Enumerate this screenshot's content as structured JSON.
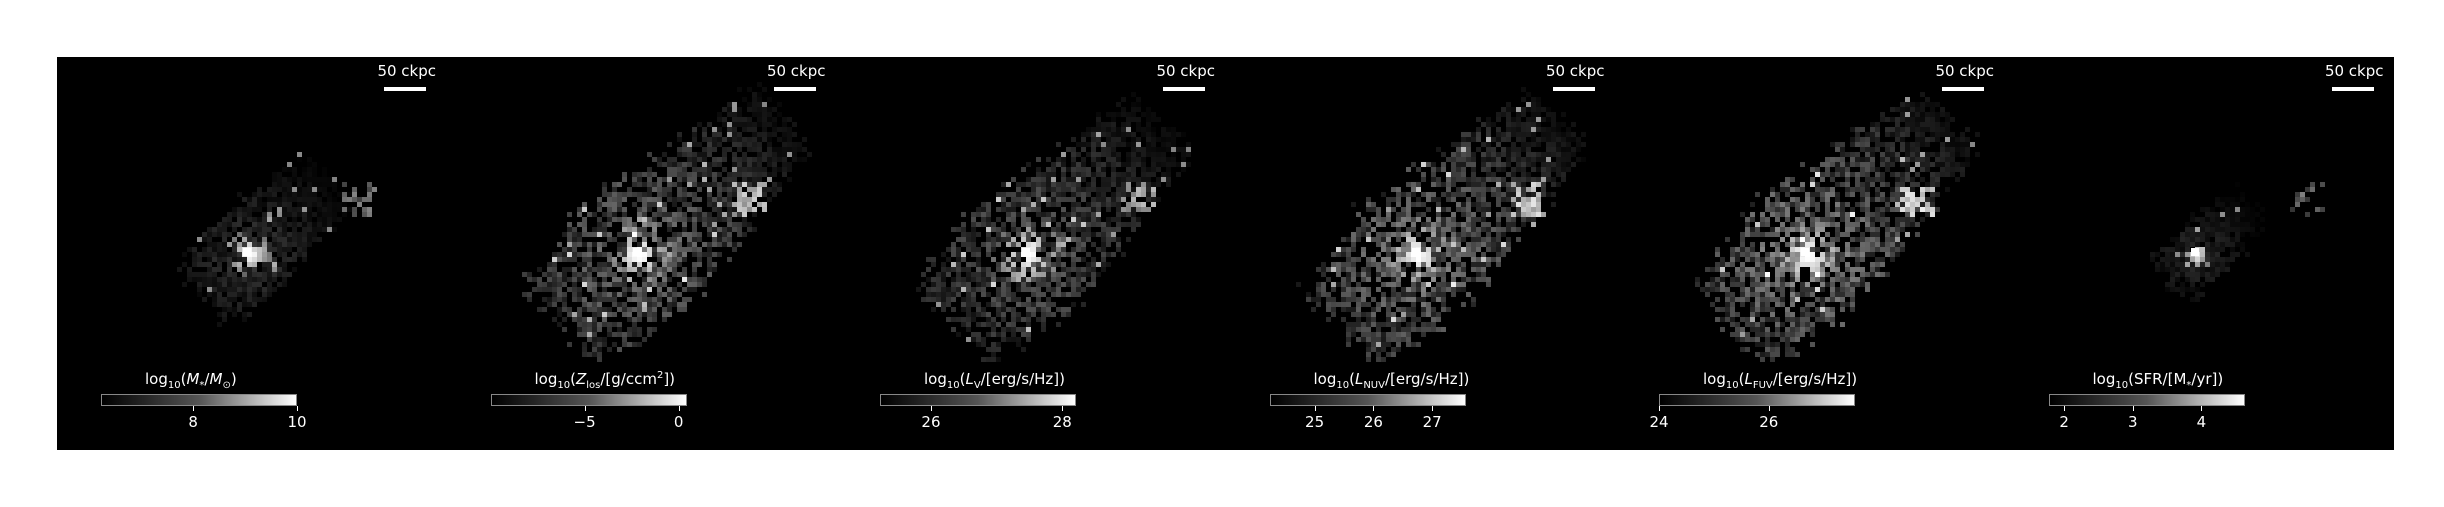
{
  "scale_label": "50 ckpc",
  "panels": [
    {
      "id": "mass",
      "colorbar_label_html": "log<sub>10</sub>(<i>M</i><sub>*</sub>/<i>M</i><sub>⊙</sub>)",
      "ticks": [
        "8",
        "10"
      ],
      "brightness": 0.25,
      "extent": 0.55,
      "core": 0.9,
      "ssize": 0.55,
      "seed": 11,
      "clump": 0.45
    },
    {
      "id": "metal",
      "colorbar_label_html": "log<sub>10</sub>(<i>Z</i><sub>los</sub>/[g/ccm<sup>2</sup>])",
      "ticks": [
        "−5",
        "0"
      ],
      "brightness": 0.55,
      "extent": 1.0,
      "core": 0.9,
      "ssize": 0.9,
      "seed": 23,
      "clump": 0.6
    },
    {
      "id": "lv",
      "colorbar_label_html": "log<sub>10</sub>(<i>L</i><sub>V</sub>/[erg/s/Hz])",
      "ticks": [
        "26",
        "28"
      ],
      "brightness": 0.45,
      "extent": 0.95,
      "core": 0.9,
      "ssize": 0.9,
      "seed": 37,
      "clump": 0.6
    },
    {
      "id": "lnuv",
      "colorbar_label_html": "log<sub>10</sub>(<i>L</i><sub>NUV</sub>/[erg/s/Hz])",
      "ticks": [
        "25",
        "26",
        "27"
      ],
      "brightness": 0.6,
      "extent": 1.0,
      "core": 0.9,
      "ssize": 1.0,
      "seed": 41,
      "clump": 0.7
    },
    {
      "id": "lfuv",
      "colorbar_label_html": "log<sub>10</sub>(<i>L</i><sub>FUV</sub>/[erg/s/Hz])",
      "ticks": [
        "24",
        "26"
      ],
      "brightness": 0.65,
      "extent": 1.0,
      "core": 0.9,
      "ssize": 1.0,
      "seed": 53,
      "clump": 0.7
    },
    {
      "id": "sfr",
      "colorbar_label_html": "log<sub>10</sub>(SFR/[M<sub>*</sub>/yr])",
      "ticks": [
        "2",
        "3",
        "4"
      ],
      "brightness": 0.2,
      "extent": 0.35,
      "core": 0.85,
      "ssize": 0.3,
      "seed": 67,
      "clump": 0.3
    }
  ]
}
